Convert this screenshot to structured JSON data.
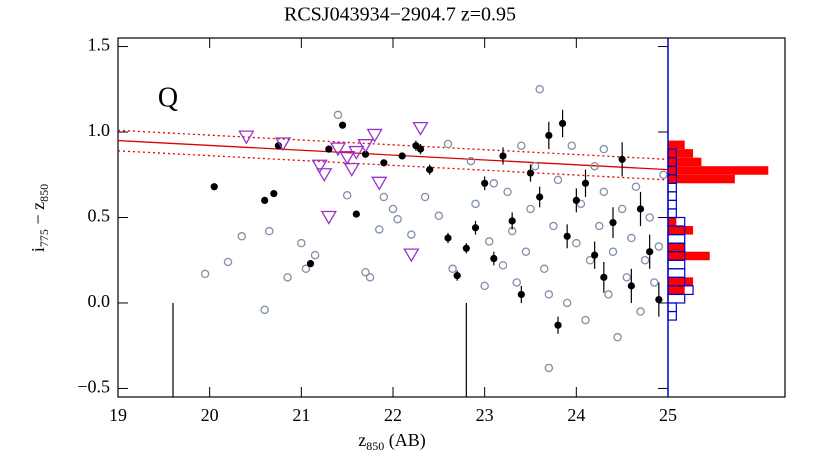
{
  "chart_data": [
    {
      "type": "scatter",
      "title": "RCSJ043934−2904.7 z=0.95",
      "label": "Q",
      "x_label": [
        "z",
        "850",
        " (AB)"
      ],
      "y_label": [
        "i",
        "775",
        " − z",
        "850"
      ],
      "xlim": [
        19,
        25
      ],
      "ylim": [
        -0.55,
        1.55
      ],
      "xticks": [
        19,
        20,
        21,
        22,
        23,
        24,
        25
      ],
      "yticks": [
        {
          "value": -0.5,
          "label": "−0.5"
        },
        {
          "value": 0,
          "label": "0.0"
        },
        0.5,
        {
          "value": 1,
          "label": "1.0"
        },
        1.5
      ],
      "fit": {
        "color": "#e00000",
        "x": [
          19,
          25
        ],
        "values": [
          0.95,
          0.78
        ],
        "upper": [
          1.01,
          0.84
        ],
        "lower": [
          0.89,
          0.72
        ]
      },
      "vlines": {
        "color": "#000000",
        "x": [
          19.6,
          22.8
        ],
        "top": 0
      },
      "series": [
        {
          "marker": "open-circle",
          "color": "#8090a8",
          "x": [
            19.95,
            20.2,
            20.35,
            20.6,
            20.65,
            20.85,
            21.0,
            21.05,
            21.15,
            21.4,
            21.5,
            21.7,
            21.75,
            21.85,
            21.9,
            22.0,
            22.05,
            22.2,
            22.35,
            22.5,
            22.6,
            22.65,
            22.85,
            22.9,
            23.0,
            23.05,
            23.1,
            23.2,
            23.25,
            23.3,
            23.35,
            23.4,
            23.45,
            23.5,
            23.55,
            23.6,
            23.65,
            23.7,
            23.75,
            23.8,
            23.9,
            23.95,
            24.0,
            24.05,
            24.1,
            24.15,
            24.2,
            24.25,
            24.3,
            24.35,
            24.4,
            24.45,
            24.5,
            24.55,
            24.6,
            24.65,
            24.7,
            24.75,
            24.8,
            24.85,
            24.9,
            24.95,
            23.7,
            24.3
          ],
          "values": [
            0.17,
            0.24,
            0.39,
            -0.04,
            0.42,
            0.15,
            0.35,
            0.2,
            0.28,
            1.1,
            0.63,
            0.18,
            0.15,
            0.43,
            0.62,
            0.55,
            0.49,
            0.4,
            0.62,
            0.51,
            0.93,
            0.2,
            0.83,
            0.58,
            0.1,
            0.36,
            0.7,
            0.22,
            0.65,
            0.42,
            0.12,
            0.92,
            0.3,
            0.55,
            0.8,
            1.25,
            0.2,
            0.05,
            0.45,
            0.72,
            0.0,
            0.92,
            0.35,
            0.58,
            -0.1,
            0.25,
            0.8,
            0.45,
            0.65,
            0.05,
            0.3,
            -0.2,
            0.55,
            0.15,
            0.38,
            0.68,
            -0.05,
            0.25,
            0.5,
            0.12,
            0.33,
            0.75,
            -0.38,
            0.9
          ]
        },
        {
          "marker": "filled-circle",
          "color": "#000000",
          "x": [
            20.05,
            20.6,
            20.7,
            20.75,
            21.1,
            21.3,
            21.45,
            21.6,
            21.7,
            21.9,
            22.1,
            22.25,
            22.3,
            22.4,
            22.6,
            22.7,
            22.8,
            22.9,
            23.0,
            23.1,
            23.2,
            23.3,
            23.4,
            23.5,
            23.6,
            23.7,
            23.8,
            23.85,
            23.9,
            24.0,
            24.1,
            24.2,
            24.3,
            24.4,
            24.5,
            24.6,
            24.7,
            24.8,
            24.9
          ],
          "values": [
            0.68,
            0.6,
            0.64,
            0.92,
            0.23,
            0.9,
            1.04,
            0.52,
            0.87,
            0.82,
            0.86,
            0.92,
            0.9,
            0.78,
            0.38,
            0.16,
            0.32,
            0.44,
            0.7,
            0.26,
            0.86,
            0.48,
            0.05,
            0.76,
            0.62,
            0.98,
            -0.13,
            1.05,
            0.39,
            0.6,
            0.7,
            0.28,
            0.15,
            0.47,
            0.84,
            0.1,
            0.55,
            0.3,
            0.02
          ],
          "errors": [
            0.01,
            0.01,
            0.01,
            0.02,
            0.02,
            0.02,
            0.02,
            0.02,
            0.02,
            0.02,
            0.02,
            0.03,
            0.03,
            0.03,
            0.03,
            0.03,
            0.03,
            0.04,
            0.04,
            0.04,
            0.05,
            0.05,
            0.05,
            0.05,
            0.06,
            0.08,
            0.05,
            0.08,
            0.07,
            0.07,
            0.08,
            0.08,
            0.09,
            0.09,
            0.1,
            0.1,
            0.1,
            0.1,
            0.1
          ]
        },
        {
          "marker": "open-triangle-down",
          "color": "#9933cc",
          "x": [
            20.4,
            20.8,
            21.2,
            21.25,
            21.3,
            21.4,
            21.5,
            21.55,
            21.6,
            21.7,
            21.85,
            21.8,
            22.2,
            22.3
          ],
          "values": [
            0.97,
            0.93,
            0.8,
            0.75,
            0.5,
            0.9,
            0.85,
            0.78,
            0.88,
            0.92,
            0.7,
            0.98,
            0.28,
            1.02
          ]
        }
      ]
    },
    {
      "type": "histogram",
      "orientation": "horizontal",
      "xlim": [
        0,
        14
      ],
      "ylim": [
        -0.55,
        1.55
      ],
      "bins": [
        -0.1,
        -0.05,
        0,
        0.05,
        0.1,
        0.15,
        0.2,
        0.25,
        0.3,
        0.35,
        0.4,
        0.45,
        0.5,
        0.55,
        0.6,
        0.65,
        0.7,
        0.75,
        0.8,
        0.85,
        0.9,
        0.95,
        1.0
      ],
      "series": [
        {
          "color": "#ff0000",
          "fill": true,
          "values": [
            0,
            0,
            0,
            2,
            3,
            0,
            0,
            5,
            2,
            0,
            3,
            1,
            0,
            0,
            0,
            0,
            8,
            12,
            4,
            3,
            2,
            0
          ]
        },
        {
          "color": "#0000cc",
          "fill": false,
          "values": [
            1,
            1,
            2,
            3,
            2,
            2,
            2,
            2,
            2,
            2,
            2,
            2,
            1,
            1,
            1,
            1,
            1,
            1,
            1,
            1,
            0,
            0
          ]
        }
      ]
    }
  ]
}
